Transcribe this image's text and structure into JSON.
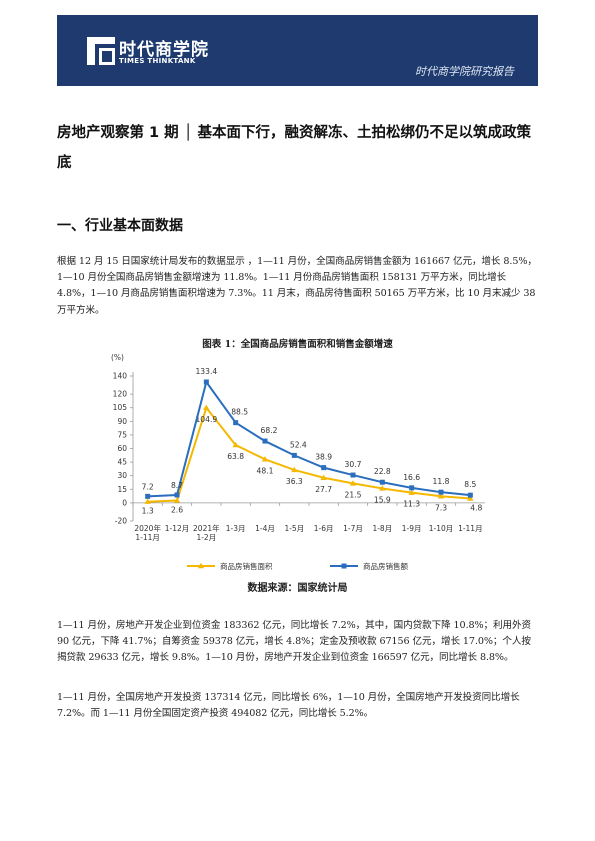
{
  "header": {
    "brand_cn": "时代商学院",
    "brand_en": "TIMES THINKTANK",
    "report_tag": "时代商学院研究报告",
    "colors": {
      "banner": "#1e3a6e"
    }
  },
  "title": "房地产观察第 1 期 │ 基本面下行，融资解冻、土拍松绑仍不足以筑成政策底",
  "section1_heading": "一、行业基本面数据",
  "para1": "根据 12 月 15 日国家统计局发布的数据显示 ，1—11 月份，全国商品房销售金额为 161667 亿元，增长 8.5%，1—10 月份全国商品房销售金额增速为 11.8%。1—11 月份商品房销售面积 158131 万平方米，同比增长 4.8%，1—10 月商品房销售面积增速为 7.3%。11 月末，商品房待售面积 50165 万平方米，比 10 月末减少 38 万平方米。",
  "figure": {
    "title": "图表 1：全国商品房销售面积和销售金额增速",
    "source": "数据来源：国家统计局"
  },
  "chart_data": {
    "type": "line",
    "ylabel": "(%)",
    "ylim": [
      -20,
      140
    ],
    "yticks": [
      -20,
      0,
      15,
      30,
      45,
      60,
      75,
      90,
      105,
      120,
      140
    ],
    "categories": [
      [
        "2020年",
        "1-11月"
      ],
      [
        "1-12月"
      ],
      [
        "2021年",
        "1-2月"
      ],
      [
        "1-3月"
      ],
      [
        "1-4月"
      ],
      [
        "1-5月"
      ],
      [
        "1-6月"
      ],
      [
        "1-7月"
      ],
      [
        "1-8月"
      ],
      [
        "1-9月"
      ],
      [
        "1-10月"
      ],
      [
        "1-11月"
      ]
    ],
    "series": [
      {
        "name": "商品房销售面积",
        "color": "#f5b800",
        "values": [
          1.3,
          2.6,
          104.9,
          63.8,
          48.1,
          36.3,
          27.7,
          21.5,
          15.9,
          11.3,
          7.3,
          4.8
        ]
      },
      {
        "name": "商品房销售额",
        "color": "#2a6ebd",
        "values": [
          7.2,
          8.7,
          133.4,
          88.5,
          68.2,
          52.4,
          38.9,
          30.7,
          22.8,
          16.6,
          11.8,
          8.5
        ]
      }
    ],
    "grid": false,
    "legend": "bottom"
  },
  "para2": "1—11 月份，房地产开发企业到位资金 183362 亿元，同比增长 7.2%，其中，国内贷款下降 10.8%；利用外资 90 亿元，下降 41.7%；自筹资金 59378 亿元，增长 4.8%；定金及预收款 67156 亿元，增长 17.0%；个人按揭贷款 29633 亿元，增长 9.8%。1—10 月份，房地产开发企业到位资金 166597 亿元，同比增长 8.8%。",
  "para3": "1—11 月份，全国房地产开发投资 137314 亿元，同比增长 6%，1—10 月份，全国房地产开发投资同比增长 7.2%。而 1—11 月份全国固定资产投资 494082 亿元，同比增长 5.2%。"
}
